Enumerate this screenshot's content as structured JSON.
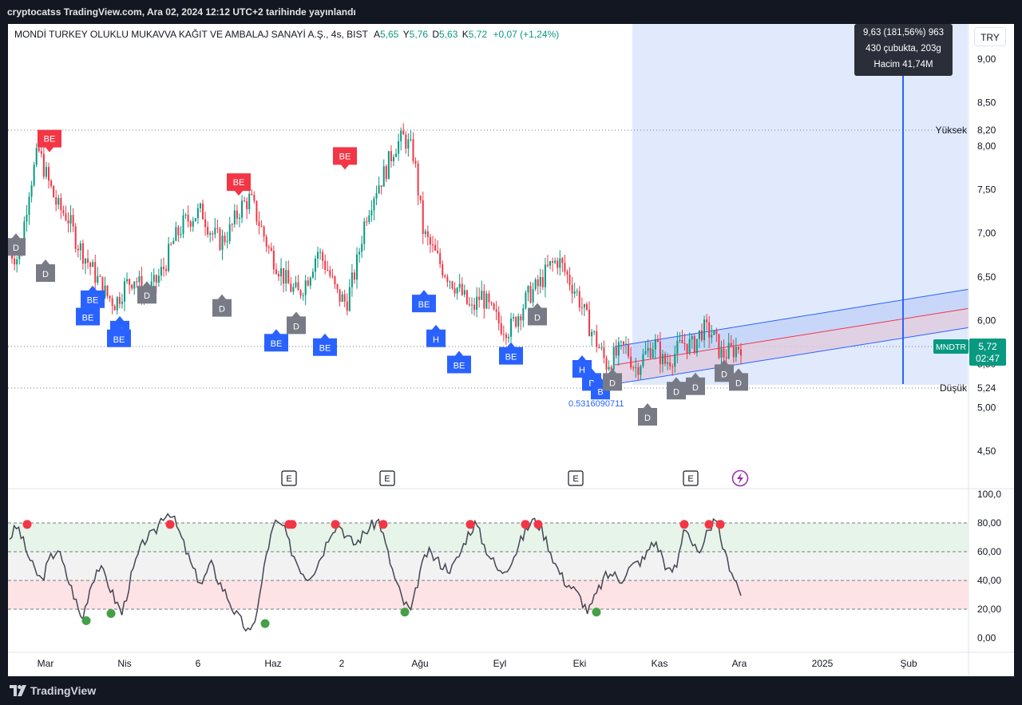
{
  "header": {
    "publish_line": "cryptocatss TradingView.com, Ara 02, 2024 12:12 UTC+2 tarihinde yayınlandı"
  },
  "legend": {
    "symbol_name": "MONDİ TURKEY OLUKLU MUKAVVA KAĞIT VE AMBALAJ SANAYİ A.Ş., 4s, BIST",
    "open_label": "A",
    "open": "5,65",
    "high_label": "Y",
    "high": "5,76",
    "low_label": "D",
    "low": "5,63",
    "close_label": "K",
    "close": "5,72",
    "change": "+0,07 (+1,24%)"
  },
  "currency_button": "TRY",
  "measure_tooltip": {
    "line1": "9,63 (181,56%) 963",
    "line2": "430 çubukta, 203g",
    "line3": "Hacim 41,74M"
  },
  "price_labels": {
    "high_label": "Yüksek",
    "high_value": "8,20",
    "low_label": "Düşük",
    "low_value": "5,24",
    "symbol_tag": "MNDTR",
    "last_price": "5,72",
    "countdown": "02:47",
    "fib_text": "0.5316090711"
  },
  "brand": {
    "logo_text": "TradingView"
  },
  "colors": {
    "up": "#089981",
    "down": "#f23645",
    "be_blue": "#2962ff",
    "be_red": "#f23645",
    "d_gray": "#787b86",
    "channel_fill": "#dce6fd",
    "projection_fill": "#dce6fd",
    "rsi_line": "#434651",
    "rsi_top_zone": "#e6f4ea",
    "rsi_bottom_zone": "#fde3e6"
  },
  "chart_data": [
    {
      "type": "candlestick",
      "title": "MONDİ TURKEY OLUKLU MUKAVVA KAĞIT VE AMBALAJ SANAYİ A.Ş., 4s, BIST",
      "x_tick_labels": [
        "Mar",
        "Nis",
        "6",
        "Haz",
        "2",
        "Ağu",
        "Eyl",
        "Eki",
        "Kas",
        "Ara",
        "2025",
        "Şub"
      ],
      "y_tick_labels": [
        "9,00",
        "8,50",
        "8,00",
        "7,50",
        "7,00",
        "6,50",
        "6,00",
        "5,50",
        "5,00",
        "4,50"
      ],
      "ylim": [
        4.3,
        9.4
      ],
      "close_approx": [
        6.8,
        6.7,
        7.5,
        7.95,
        7.6,
        7.3,
        7.2,
        6.9,
        6.7,
        6.5,
        6.3,
        6.2,
        6.4,
        6.5,
        6.3,
        6.4,
        6.6,
        6.9,
        7.1,
        7.2,
        7.25,
        7.0,
        6.9,
        7.05,
        7.3,
        7.4,
        7.1,
        6.8,
        6.6,
        6.4,
        6.3,
        6.5,
        6.8,
        6.6,
        6.3,
        6.2,
        6.6,
        7.2,
        7.5,
        7.7,
        8.0,
        8.1,
        7.9,
        7.0,
        6.8,
        6.6,
        6.45,
        6.3,
        6.1,
        6.3,
        6.1,
        5.95,
        5.9,
        6.1,
        6.3,
        6.4,
        6.6,
        6.7,
        6.5,
        6.3,
        6.0,
        5.75,
        5.5,
        5.6,
        5.7,
        5.45,
        5.6,
        5.75,
        5.5,
        5.6,
        5.75,
        5.7,
        5.9,
        5.85,
        5.6,
        5.65,
        5.72
      ],
      "period_high": 8.2,
      "period_low": 5.24,
      "last_price": 5.72,
      "channel": {
        "start_x": "Eki",
        "start_lower": 5.3,
        "start_upper": 5.7,
        "end_lower": 5.9,
        "end_upper": 6.35
      },
      "measure": {
        "price_change": "9,63 (181,56%) 963",
        "bars": "430 çubukta, 203g",
        "volume": "Hacim 41,74M"
      },
      "signals": [
        {
          "label": "BE",
          "kind": "sell",
          "price": 7.95
        },
        {
          "label": "BE",
          "kind": "sell",
          "price": 7.45
        },
        {
          "label": "BE",
          "kind": "sell",
          "price": 7.75
        },
        {
          "label": "BE",
          "kind": "buy",
          "price": 6.4
        },
        {
          "label": "BE",
          "kind": "buy",
          "price": 6.2
        },
        {
          "label": "H",
          "kind": "buy",
          "price": 6.05
        },
        {
          "label": "BE",
          "kind": "buy",
          "price": 5.95
        },
        {
          "label": "BE",
          "kind": "buy",
          "price": 5.9
        },
        {
          "label": "BE",
          "kind": "buy",
          "price": 6.35
        },
        {
          "label": "H",
          "kind": "buy",
          "price": 5.95
        },
        {
          "label": "BE",
          "kind": "buy",
          "price": 5.85
        },
        {
          "label": "BE",
          "kind": "buy",
          "price": 5.65
        },
        {
          "label": "BE",
          "kind": "buy",
          "price": 5.75
        },
        {
          "label": "H",
          "kind": "buy",
          "price": 5.6
        },
        {
          "label": "B",
          "kind": "buy",
          "price": 5.45
        },
        {
          "label": "B",
          "kind": "buy",
          "price": 5.35
        },
        {
          "label": "D",
          "kind": "neutral",
          "price": 6.7
        },
        {
          "label": "D",
          "kind": "neutral",
          "price": 7.0
        },
        {
          "label": "D",
          "kind": "neutral",
          "price": 6.3
        },
        {
          "label": "D",
          "kind": "neutral",
          "price": 6.45
        },
        {
          "label": "D",
          "kind": "neutral",
          "price": 6.1
        },
        {
          "label": "D",
          "kind": "neutral",
          "price": 6.2
        },
        {
          "label": "D",
          "kind": "neutral",
          "price": 5.45
        },
        {
          "label": "D",
          "kind": "neutral",
          "price": 5.05
        },
        {
          "label": "D",
          "kind": "neutral",
          "price": 5.35
        },
        {
          "label": "D",
          "kind": "neutral",
          "price": 5.4
        },
        {
          "label": "D",
          "kind": "neutral",
          "price": 5.55
        },
        {
          "label": "D",
          "kind": "neutral",
          "price": 5.45
        }
      ],
      "earnings_marks": [
        "E",
        "E",
        "E",
        "E"
      ]
    },
    {
      "type": "line",
      "title": "",
      "y_tick_labels": [
        "100,0",
        "80,00",
        "60,00",
        "40,00",
        "20,00",
        "0,00"
      ],
      "ylim": [
        -5,
        100
      ],
      "zones": [
        {
          "from": 60,
          "to": 80
        },
        {
          "from": 20,
          "to": 40
        }
      ],
      "levels": [
        80,
        60,
        40,
        20
      ],
      "values_approx": [
        70,
        78,
        62,
        48,
        40,
        55,
        62,
        45,
        30,
        12,
        35,
        50,
        42,
        28,
        17,
        40,
        58,
        70,
        72,
        85,
        88,
        75,
        60,
        45,
        38,
        52,
        40,
        30,
        18,
        10,
        2,
        25,
        60,
        80,
        78,
        62,
        50,
        42,
        48,
        60,
        75,
        80,
        70,
        65,
        72,
        78,
        82,
        60,
        40,
        25,
        18,
        45,
        60,
        55,
        50,
        48,
        58,
        72,
        80,
        65,
        55,
        45,
        50,
        60,
        72,
        82,
        78,
        65,
        50,
        40,
        35,
        28,
        18,
        30,
        42,
        45,
        40,
        48,
        52,
        55,
        68,
        60,
        45,
        50,
        80,
        65,
        55,
        78,
        80,
        58,
        45,
        30
      ],
      "overbought_marks": 12,
      "oversold_marks": 5
    }
  ]
}
